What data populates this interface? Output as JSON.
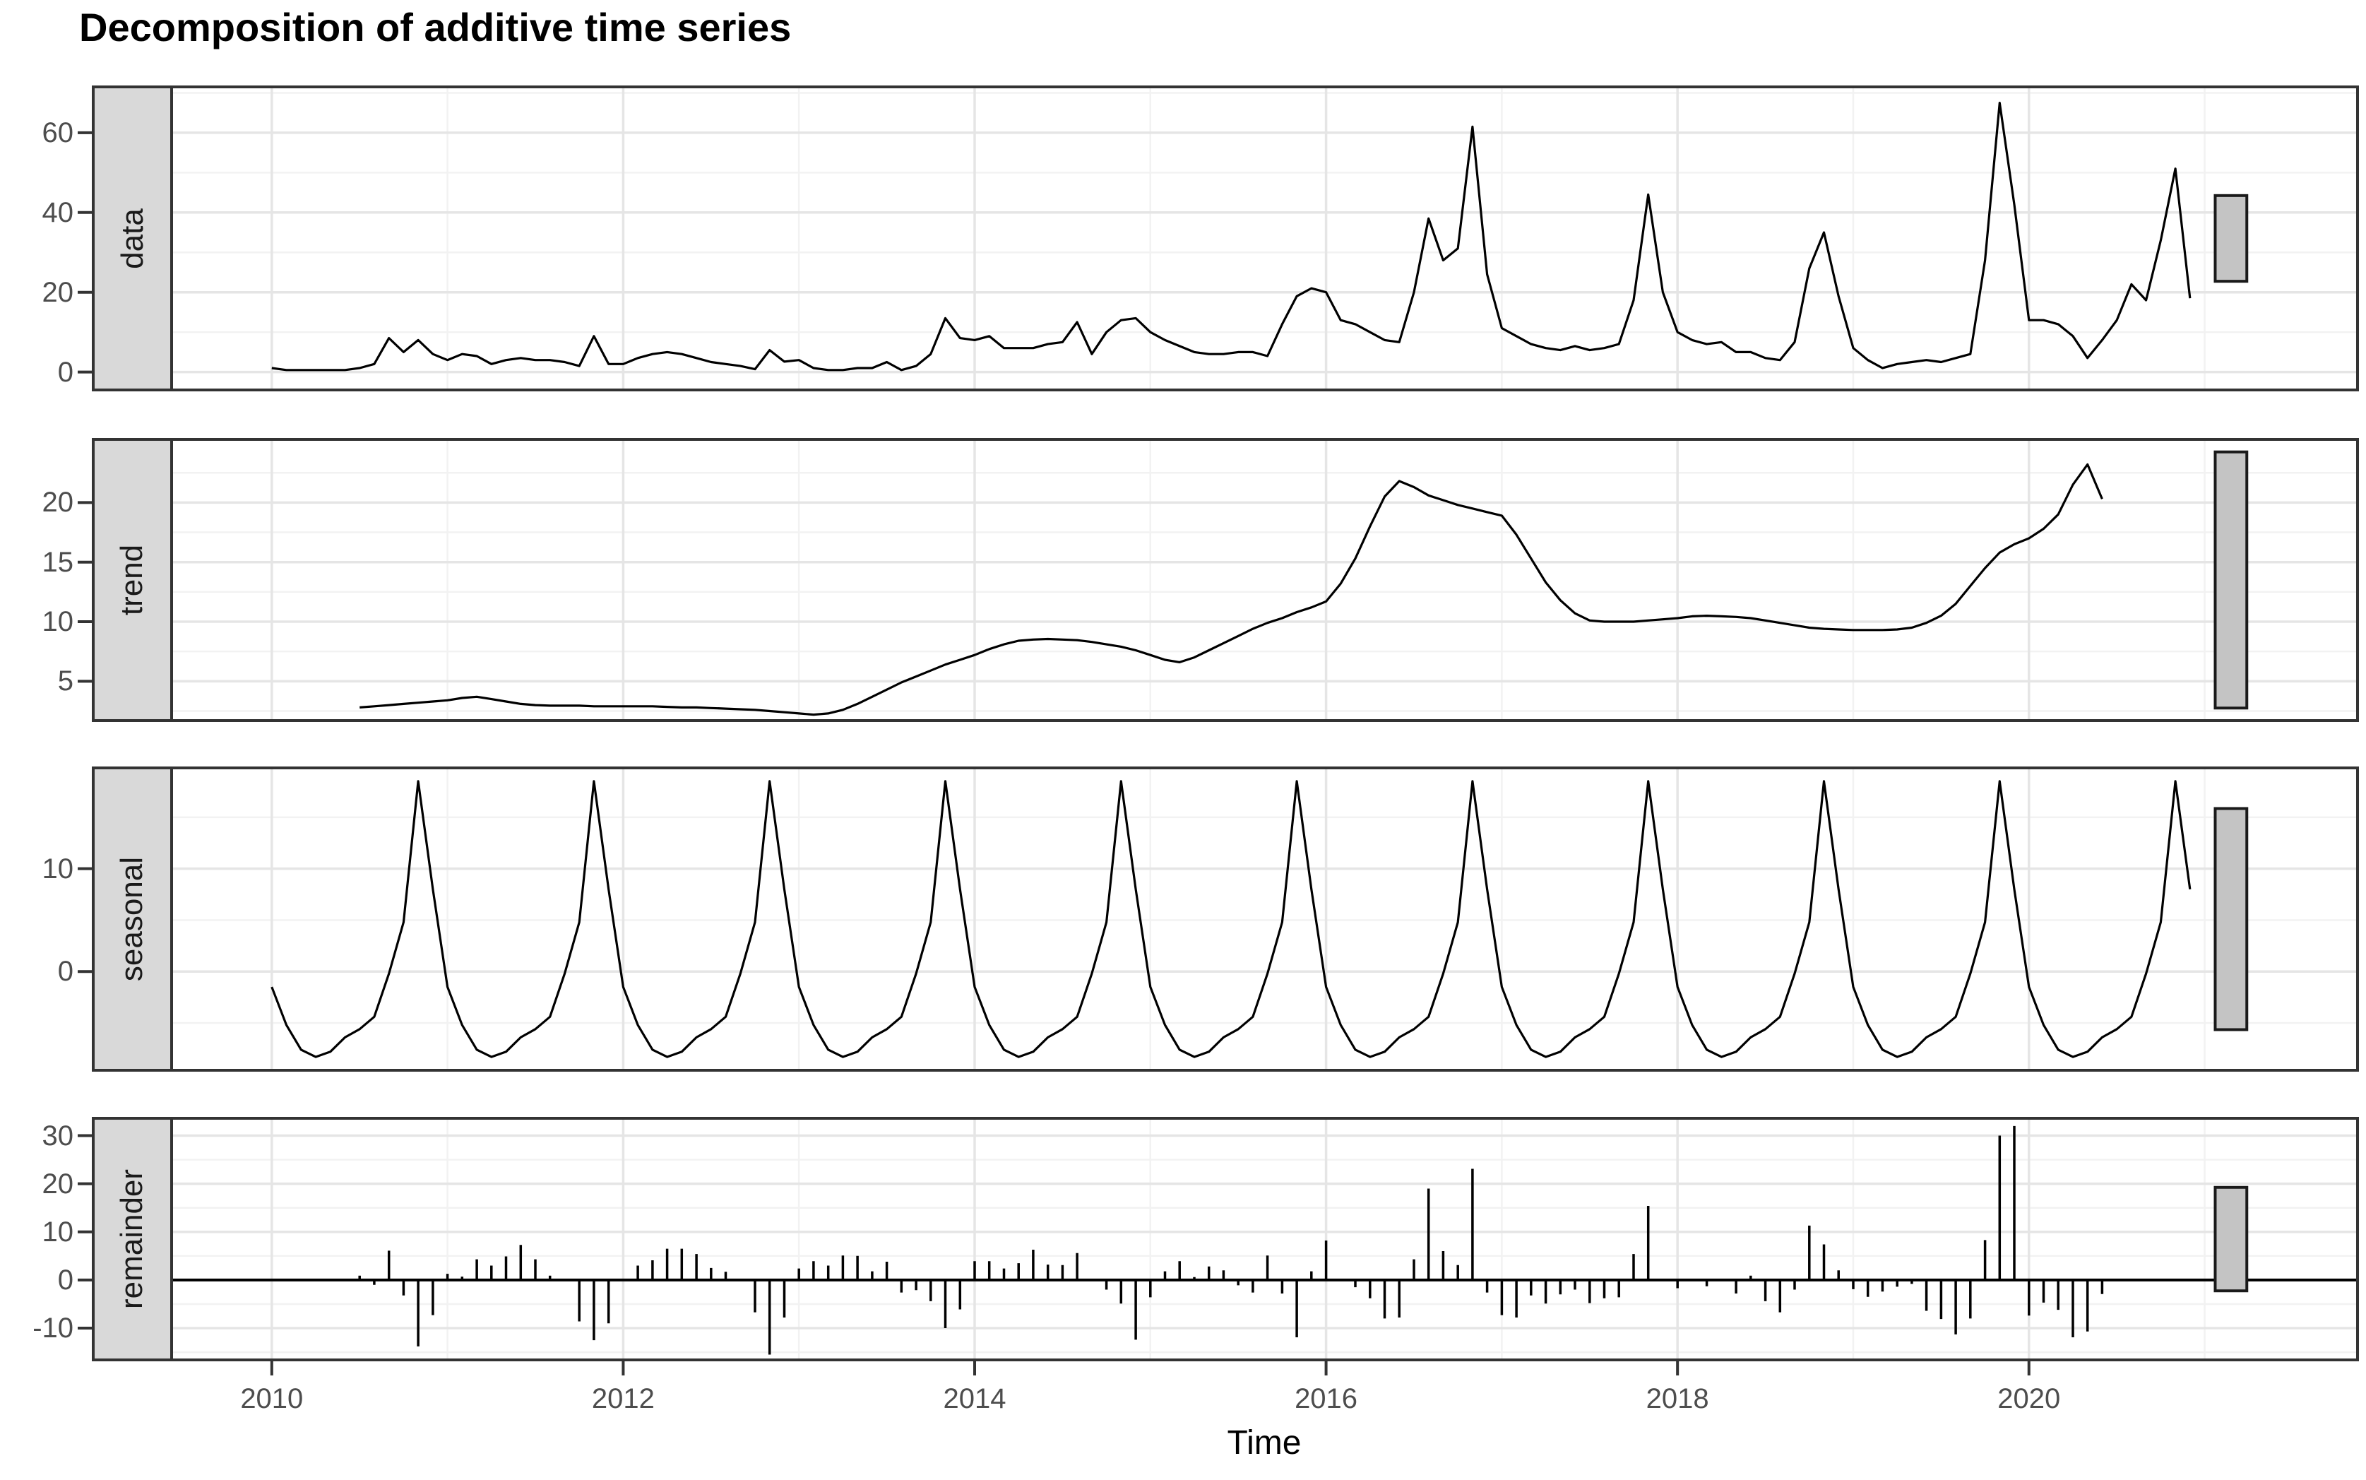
{
  "title": "Decomposition of additive time series",
  "x_axis": {
    "label": "Time",
    "major_ticks": [
      2010,
      2012,
      2014,
      2016,
      2018,
      2020
    ],
    "minor_ticks": [
      2011,
      2013,
      2015,
      2017,
      2019,
      2021
    ],
    "range": [
      2009.43,
      2021.87
    ]
  },
  "panels": [
    {
      "id": "data",
      "label": "data",
      "ymin": -4.5,
      "ymax": 71.5,
      "yticks": [
        0,
        20,
        40,
        60
      ],
      "yminor": [
        10,
        30,
        50,
        70
      ],
      "type": "line"
    },
    {
      "id": "trend",
      "label": "trend",
      "ymin": 1.7,
      "ymax": 25.3,
      "yticks": [
        5,
        10,
        15,
        20
      ],
      "yminor": [
        2.5,
        7.5,
        12.5,
        17.5,
        22.5
      ],
      "type": "line"
    },
    {
      "id": "seasonal",
      "label": "seasonal",
      "ymin": -9.6,
      "ymax": 19.8,
      "yticks": [
        0,
        10
      ],
      "yminor": [
        -5,
        5,
        15
      ],
      "type": "line"
    },
    {
      "id": "remainder",
      "label": "remainder",
      "ymin": -16.6,
      "ymax": 33.6,
      "yticks": [
        -10,
        0,
        10,
        20,
        30
      ],
      "yminor": [
        -15,
        -5,
        5,
        15,
        25
      ],
      "type": "segments",
      "zero_line": true
    }
  ],
  "scale_bar": {
    "x_year": 2021.15,
    "width_years": 0.18,
    "height_units": 21.5
  },
  "colors": {
    "background": "#ffffff",
    "panel_border": "#333333",
    "grid_major": "#e5e5e5",
    "grid_minor": "#f2f2f2",
    "strip_fill": "#d9d9d9",
    "strip_border": "#333333",
    "series": "#000000",
    "tick_label": "#4d4d4d",
    "scale_bar_fill": "#c4c4c4"
  },
  "chart_data": {
    "type": "line",
    "title": "Decomposition of additive time series",
    "xlabel": "Time",
    "start_year": 2010,
    "frequency": 12,
    "n_months": 132,
    "grid": "on",
    "series": [
      {
        "name": "data",
        "values": [
          1.0,
          0.5,
          0.5,
          0.5,
          0.5,
          0.5,
          1.0,
          2.0,
          8.5,
          5.0,
          8.0,
          4.5,
          3.0,
          4.5,
          4.0,
          2.0,
          3.0,
          3.5,
          3.0,
          3.0,
          2.5,
          1.5,
          9.0,
          2.0,
          2.0,
          3.5,
          4.5,
          5.0,
          4.5,
          3.5,
          2.5,
          2.0,
          1.5,
          0.7,
          5.5,
          2.6,
          3.0,
          1.0,
          0.5,
          0.5,
          1.0,
          1.0,
          2.5,
          0.5,
          1.5,
          4.5,
          13.5,
          8.5,
          8.0,
          9.0,
          6.0,
          6.0,
          6.0,
          7.0,
          7.5,
          12.5,
          4.5,
          10.0,
          13.0,
          13.5,
          10.0,
          8.0,
          6.5,
          5.0,
          4.5,
          4.5,
          5.0,
          5.0,
          4.0,
          12.0,
          19.0,
          21.0,
          20.0,
          13.0,
          12.0,
          10.0,
          8.0,
          7.5,
          20.0,
          38.5,
          28.0,
          31.0,
          61.5,
          24.5,
          11.0,
          9.0,
          7.0,
          6.0,
          5.5,
          6.5,
          5.5,
          6.0,
          7.0,
          18.0,
          44.5,
          20.0,
          10.0,
          8.0,
          7.0,
          7.5,
          5.0,
          5.0,
          3.5,
          3.0,
          7.5,
          26.0,
          35.0,
          19.0,
          6.0,
          3.0,
          1.0,
          2.0,
          2.5,
          3.0,
          2.5,
          3.5,
          4.5,
          28.0,
          67.5,
          42.0,
          13.0,
          13.0,
          12.0,
          9.0,
          3.5,
          8.0,
          13.0,
          22.0,
          18.0,
          33.0,
          51.0,
          18.5
        ]
      },
      {
        "name": "trend",
        "values": [
          null,
          null,
          null,
          null,
          null,
          null,
          2.8,
          2.9,
          3.0,
          3.1,
          3.2,
          3.3,
          3.4,
          3.6,
          3.7,
          3.5,
          3.3,
          3.1,
          3.0,
          2.95,
          2.95,
          2.95,
          2.9,
          2.9,
          2.9,
          2.9,
          2.9,
          2.85,
          2.8,
          2.8,
          2.75,
          2.7,
          2.65,
          2.6,
          2.5,
          2.4,
          2.3,
          2.2,
          2.3,
          2.6,
          3.1,
          3.7,
          4.3,
          4.9,
          5.4,
          5.9,
          6.4,
          6.8,
          7.2,
          7.7,
          8.1,
          8.4,
          8.5,
          8.55,
          8.5,
          8.45,
          8.3,
          8.1,
          7.9,
          7.6,
          7.2,
          6.8,
          6.6,
          7.0,
          7.6,
          8.2,
          8.8,
          9.4,
          9.9,
          10.3,
          10.8,
          11.2,
          11.7,
          13.2,
          15.3,
          18.0,
          20.5,
          21.8,
          21.3,
          20.6,
          20.2,
          19.8,
          19.5,
          19.2,
          18.9,
          17.3,
          15.3,
          13.3,
          11.8,
          10.7,
          10.1,
          10.0,
          10.0,
          10.0,
          10.1,
          10.2,
          10.3,
          10.45,
          10.5,
          10.45,
          10.4,
          10.3,
          10.1,
          9.9,
          9.7,
          9.5,
          9.4,
          9.35,
          9.3,
          9.3,
          9.3,
          9.35,
          9.5,
          9.9,
          10.5,
          11.5,
          13.0,
          14.5,
          15.8,
          16.5,
          17.0,
          17.8,
          19.0,
          21.5,
          23.2,
          20.3,
          null,
          null,
          null,
          null,
          null,
          null
        ]
      },
      {
        "name": "seasonal",
        "monthly_pattern": [
          -1.5,
          -5.2,
          -7.6,
          -8.3,
          -7.8,
          -6.4,
          -5.6,
          -4.4,
          -0.2,
          4.8,
          18.5,
          8.0
        ],
        "values": [
          -1.5,
          -5.2,
          -7.6,
          -8.3,
          -7.8,
          -6.4,
          -5.6,
          -4.4,
          -0.2,
          4.8,
          18.5,
          8.0,
          -1.5,
          -5.2,
          -7.6,
          -8.3,
          -7.8,
          -6.4,
          -5.6,
          -4.4,
          -0.2,
          4.8,
          18.5,
          8.0,
          -1.5,
          -5.2,
          -7.6,
          -8.3,
          -7.8,
          -6.4,
          -5.6,
          -4.4,
          -0.2,
          4.8,
          18.5,
          8.0,
          -1.5,
          -5.2,
          -7.6,
          -8.3,
          -7.8,
          -6.4,
          -5.6,
          -4.4,
          -0.2,
          4.8,
          18.5,
          8.0,
          -1.5,
          -5.2,
          -7.6,
          -8.3,
          -7.8,
          -6.4,
          -5.6,
          -4.4,
          -0.2,
          4.8,
          18.5,
          8.0,
          -1.5,
          -5.2,
          -7.6,
          -8.3,
          -7.8,
          -6.4,
          -5.6,
          -4.4,
          -0.2,
          4.8,
          18.5,
          8.0,
          -1.5,
          -5.2,
          -7.6,
          -8.3,
          -7.8,
          -6.4,
          -5.6,
          -4.4,
          -0.2,
          4.8,
          18.5,
          8.0,
          -1.5,
          -5.2,
          -7.6,
          -8.3,
          -7.8,
          -6.4,
          -5.6,
          -4.4,
          -0.2,
          4.8,
          18.5,
          8.0,
          -1.5,
          -5.2,
          -7.6,
          -8.3,
          -7.8,
          -6.4,
          -5.6,
          -4.4,
          -0.2,
          4.8,
          18.5,
          8.0,
          -1.5,
          -5.2,
          -7.6,
          -8.3,
          -7.8,
          -6.4,
          -5.6,
          -4.4,
          -0.2,
          4.8,
          18.5,
          8.0,
          -1.5,
          -5.2,
          -7.6,
          -8.3,
          -7.8,
          -6.4,
          -5.6,
          -4.4,
          -0.2,
          4.8,
          18.5,
          8.0
        ]
      },
      {
        "name": "remainder",
        "values": [
          null,
          null,
          null,
          null,
          null,
          null,
          0.9,
          -1.0,
          6.1,
          -3.2,
          -13.8,
          -7.3,
          1.3,
          0.7,
          4.3,
          3.0,
          4.9,
          7.3,
          4.3,
          0.9,
          0.0,
          -8.6,
          -12.5,
          -9.0,
          0.0,
          3.0,
          4.1,
          6.5,
          6.5,
          5.4,
          2.5,
          1.7,
          0.0,
          -6.7,
          -15.5,
          -7.8,
          2.4,
          3.9,
          3.0,
          5.1,
          5.0,
          1.8,
          3.8,
          -2.6,
          -2.1,
          -4.4,
          -10.0,
          -6.1,
          3.9,
          3.9,
          2.4,
          3.5,
          6.3,
          3.2,
          3.1,
          5.6,
          0.0,
          -2.0,
          -4.9,
          -12.4,
          -3.6,
          1.8,
          3.9,
          0.6,
          2.8,
          2.0,
          -1.1,
          -2.6,
          5.1,
          -2.8,
          -11.9,
          1.8,
          8.2,
          0.0,
          -1.5,
          -3.8,
          -8.0,
          -7.8,
          4.3,
          19.0,
          6.0,
          3.1,
          23.1,
          -2.6,
          -7.3,
          -7.8,
          -3.2,
          -4.9,
          -3.0,
          -2.0,
          -4.8,
          -3.8,
          -3.6,
          5.4,
          15.4,
          0.0,
          -1.7,
          0.0,
          -1.3,
          0.0,
          -2.8,
          0.9,
          -4.4,
          -6.7,
          -2.0,
          11.3,
          7.4,
          2.0,
          -1.9,
          -3.5,
          -2.4,
          -1.4,
          -0.8,
          -6.4,
          -8.1,
          -11.3,
          -8.0,
          8.3,
          30.0,
          32.0,
          -7.4,
          -4.7,
          -6.2,
          -11.9,
          -10.7,
          -2.9,
          null,
          null,
          null,
          null,
          null,
          null
        ]
      }
    ]
  }
}
